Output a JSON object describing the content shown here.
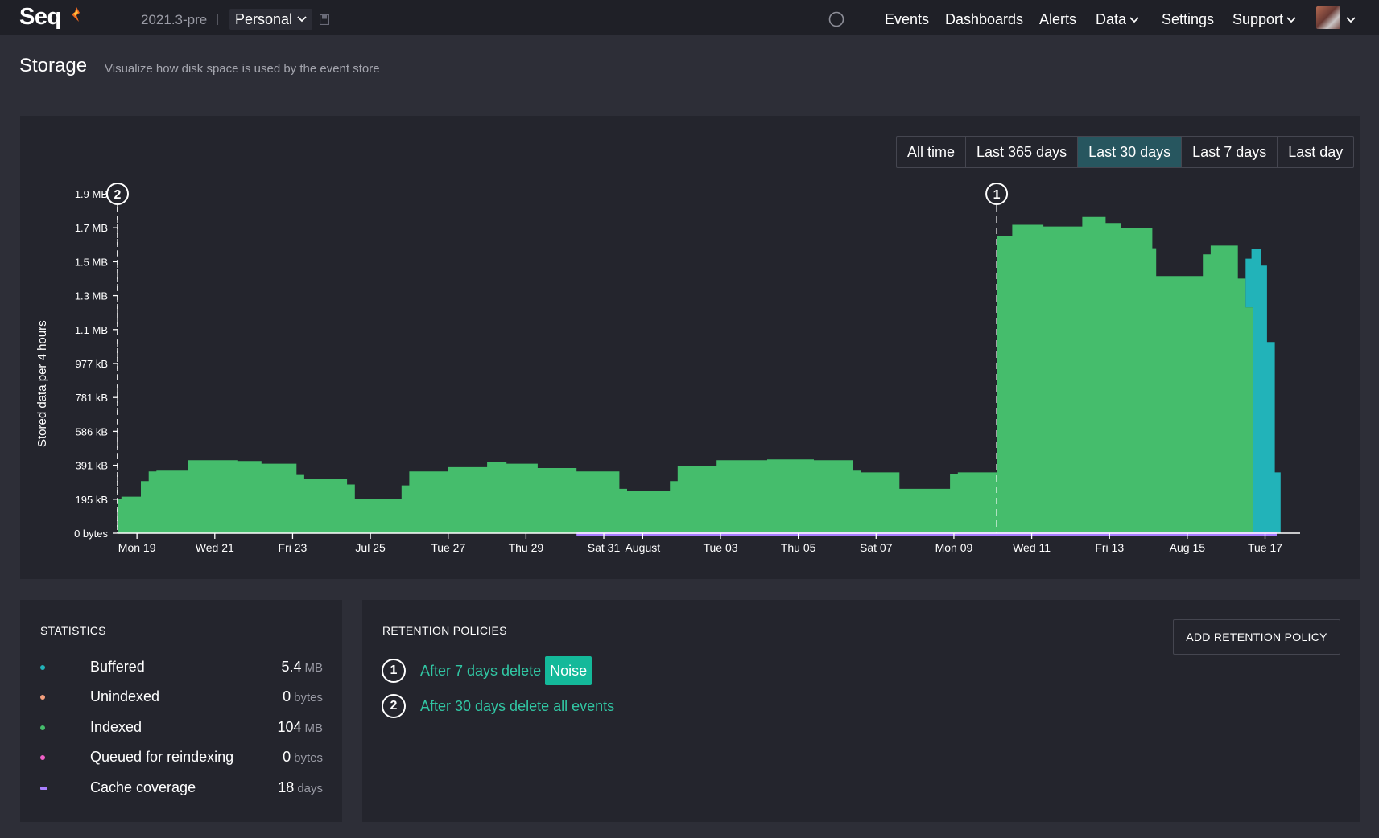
{
  "app": {
    "logo": "Seq",
    "version": "2021.3-pre",
    "workspace": "Personal",
    "nav": {
      "events": "Events",
      "dashboards": "Dashboards",
      "alerts": "Alerts",
      "data": "Data",
      "settings": "Settings",
      "support": "Support"
    }
  },
  "page": {
    "title": "Storage",
    "subtitle": "Visualize how disk space is used by the event store"
  },
  "ranges": [
    {
      "label": "All time",
      "active": false
    },
    {
      "label": "Last 365 days",
      "active": false
    },
    {
      "label": "Last 30 days",
      "active": true
    },
    {
      "label": "Last 7 days",
      "active": false
    },
    {
      "label": "Last day",
      "active": false
    }
  ],
  "chart_data": {
    "type": "area",
    "ylabel": "Stored data per 4 hours",
    "y_ticks": [
      "0 bytes",
      "195 kB",
      "391 kB",
      "586 kB",
      "781 kB",
      "977 kB",
      "1.1 MB",
      "1.3 MB",
      "1.5 MB",
      "1.7 MB",
      "1.9 MB"
    ],
    "ylim_kb": [
      0,
      1953
    ],
    "x_ticks": [
      "Mon 19",
      "Wed 21",
      "Fri 23",
      "Jul 25",
      "Tue 27",
      "Thu 29",
      "Sat 31",
      "August",
      "Tue 03",
      "Thu 05",
      "Sat 07",
      "Mon 09",
      "Wed 11",
      "Fri 13",
      "Aug 15",
      "Tue 17"
    ],
    "x_tick_days": [
      1,
      3,
      5,
      7,
      9,
      11,
      13,
      14,
      16,
      18,
      20,
      22,
      24,
      26,
      28,
      30
    ],
    "xlim_days": [
      0.5,
      30.9
    ],
    "series": [
      {
        "name": "Indexed",
        "color": "#45bd6c",
        "points": [
          [
            0.5,
            195
          ],
          [
            0.6,
            195
          ],
          [
            0.6,
            210
          ],
          [
            1.1,
            210
          ],
          [
            1.1,
            300
          ],
          [
            1.3,
            300
          ],
          [
            1.3,
            355
          ],
          [
            1.5,
            355
          ],
          [
            1.5,
            360
          ],
          [
            2.3,
            360
          ],
          [
            2.3,
            420
          ],
          [
            3.6,
            420
          ],
          [
            3.6,
            415
          ],
          [
            4.2,
            415
          ],
          [
            4.2,
            400
          ],
          [
            5.1,
            400
          ],
          [
            5.1,
            335
          ],
          [
            5.3,
            335
          ],
          [
            5.3,
            310
          ],
          [
            6.4,
            310
          ],
          [
            6.4,
            280
          ],
          [
            6.6,
            280
          ],
          [
            6.6,
            195
          ],
          [
            7.8,
            195
          ],
          [
            7.8,
            275
          ],
          [
            8.0,
            275
          ],
          [
            8.0,
            355
          ],
          [
            9.0,
            355
          ],
          [
            9.0,
            380
          ],
          [
            10.0,
            380
          ],
          [
            10.0,
            410
          ],
          [
            10.5,
            410
          ],
          [
            10.5,
            400
          ],
          [
            11.3,
            400
          ],
          [
            11.3,
            375
          ],
          [
            12.3,
            375
          ],
          [
            12.3,
            355
          ],
          [
            13.4,
            355
          ],
          [
            13.4,
            255
          ],
          [
            13.6,
            255
          ],
          [
            13.6,
            245
          ],
          [
            14.7,
            245
          ],
          [
            14.7,
            300
          ],
          [
            14.9,
            300
          ],
          [
            14.9,
            385
          ],
          [
            15.9,
            385
          ],
          [
            15.9,
            420
          ],
          [
            17.2,
            420
          ],
          [
            17.2,
            425
          ],
          [
            18.4,
            425
          ],
          [
            18.4,
            420
          ],
          [
            19.4,
            420
          ],
          [
            19.4,
            360
          ],
          [
            19.6,
            360
          ],
          [
            19.6,
            350
          ],
          [
            20.6,
            350
          ],
          [
            20.6,
            255
          ],
          [
            21.9,
            255
          ],
          [
            21.9,
            340
          ],
          [
            22.1,
            340
          ],
          [
            22.1,
            350
          ],
          [
            23.1,
            350
          ],
          [
            23.1,
            1710
          ],
          [
            23.5,
            1710
          ],
          [
            23.5,
            1775
          ],
          [
            24.3,
            1775
          ],
          [
            24.3,
            1765
          ],
          [
            25.3,
            1765
          ],
          [
            25.3,
            1820
          ],
          [
            25.9,
            1820
          ],
          [
            25.9,
            1785
          ],
          [
            26.3,
            1785
          ],
          [
            26.3,
            1755
          ],
          [
            27.1,
            1755
          ],
          [
            27.1,
            1640
          ],
          [
            27.2,
            1640
          ],
          [
            27.2,
            1480
          ],
          [
            28.4,
            1480
          ],
          [
            28.4,
            1605
          ],
          [
            28.6,
            1605
          ],
          [
            28.6,
            1655
          ],
          [
            29.3,
            1655
          ],
          [
            29.3,
            1465
          ],
          [
            29.5,
            1465
          ],
          [
            29.5,
            1300
          ],
          [
            29.7,
            1300
          ],
          [
            29.7,
            0
          ]
        ]
      },
      {
        "name": "Buffered",
        "color": "#22b3b9",
        "points": [
          [
            29.3,
            1300
          ],
          [
            29.5,
            1300
          ],
          [
            29.5,
            1580
          ],
          [
            29.65,
            1580
          ],
          [
            29.65,
            1635
          ],
          [
            29.9,
            1635
          ],
          [
            29.9,
            1540
          ],
          [
            30.05,
            1540
          ],
          [
            30.05,
            1100
          ],
          [
            30.25,
            1100
          ],
          [
            30.25,
            350
          ],
          [
            30.4,
            350
          ],
          [
            30.4,
            0
          ],
          [
            29.7,
            0
          ],
          [
            29.7,
            1300
          ]
        ]
      }
    ],
    "cache_coverage": {
      "color": "#a97fff",
      "start_day": 12.3,
      "end_day": 30.3
    },
    "markers": [
      {
        "label": "2",
        "day": 0.5
      },
      {
        "label": "1",
        "day": 23.1
      }
    ]
  },
  "statistics": {
    "title": "STATISTICS",
    "rows": [
      {
        "label": "Buffered",
        "value": "5.4",
        "unit": "MB",
        "color": "#22b3b9",
        "shape": "dot"
      },
      {
        "label": "Unindexed",
        "value": "0",
        "unit": "bytes",
        "color": "#f4a07e",
        "shape": "dot"
      },
      {
        "label": "Indexed",
        "value": "104",
        "unit": "MB",
        "color": "#45bd6c",
        "shape": "dot"
      },
      {
        "label": "Queued for reindexing",
        "value": "0",
        "unit": "bytes",
        "color": "#f060c8",
        "shape": "dot"
      },
      {
        "label": "Cache coverage",
        "value": "18",
        "unit": "days",
        "color": "#a97fff",
        "shape": "dash"
      }
    ]
  },
  "retention": {
    "title": "RETENTION POLICIES",
    "add_label": "ADD RETENTION POLICY",
    "policies": [
      {
        "num": "1",
        "text": "After 7 days delete",
        "tag": "Noise"
      },
      {
        "num": "2",
        "text": "After 30 days delete all events",
        "tag": ""
      }
    ]
  }
}
